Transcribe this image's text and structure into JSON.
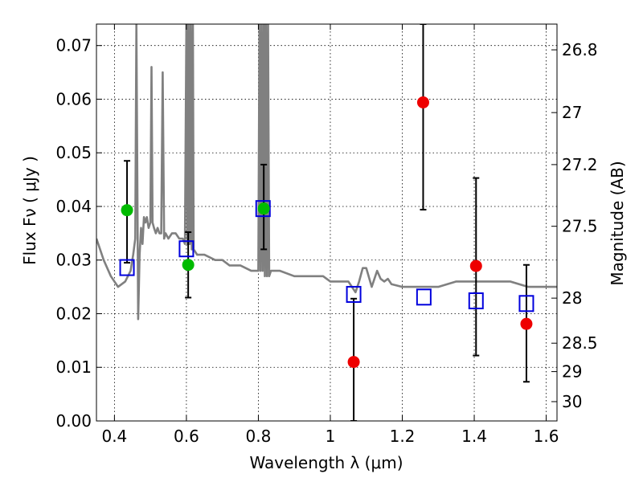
{
  "chart_data": {
    "type": "scatter",
    "title": "",
    "xlabel": "Wavelength  λ (μm)",
    "ylabel": "Flux  Fν  ( μJy )",
    "y2label": "Magnitude (AB)",
    "xlim": [
      0.35,
      1.63
    ],
    "ylim": [
      0.0,
      0.074
    ],
    "grid": true,
    "xticks": [
      0.4,
      0.6,
      0.8,
      1.0,
      1.2,
      1.4,
      1.6
    ],
    "xtick_labels": [
      "0.4",
      "0.6",
      "0.8",
      "1",
      "1.2",
      "1.4",
      "1.6"
    ],
    "yticks": [
      0.0,
      0.01,
      0.02,
      0.03,
      0.04,
      0.05,
      0.06,
      0.07
    ],
    "ytick_labels": [
      "0.00",
      "0.01",
      "0.02",
      "0.03",
      "0.04",
      "0.05",
      "0.06",
      "0.07"
    ],
    "y2ticks": [
      {
        "label": "26.8",
        "flux": 0.0692
      },
      {
        "label": "27",
        "flux": 0.0575
      },
      {
        "label": "27.2",
        "flux": 0.0478
      },
      {
        "label": "27.5",
        "flux": 0.0363
      },
      {
        "label": "28",
        "flux": 0.0229
      },
      {
        "label": "28.5",
        "flux": 0.0145
      },
      {
        "label": "29",
        "flux": 0.0092
      },
      {
        "label": "30",
        "flux": 0.0036
      }
    ],
    "colors": {
      "model": "#808080",
      "green": "#00bb00",
      "red": "#ee0000",
      "square": "#0000dd",
      "errorbar": "#000000"
    },
    "series": [
      {
        "name": "model spectrum",
        "kind": "line",
        "x": [
          0.35,
          0.37,
          0.39,
          0.41,
          0.43,
          0.445,
          0.452,
          0.458,
          0.461,
          0.466,
          0.47,
          0.474,
          0.478,
          0.482,
          0.486,
          0.49,
          0.495,
          0.5,
          0.503,
          0.506,
          0.51,
          0.515,
          0.52,
          0.525,
          0.53,
          0.534,
          0.538,
          0.542,
          0.55,
          0.56,
          0.57,
          0.58,
          0.59,
          0.596,
          0.6,
          0.603,
          0.606,
          0.609,
          0.612,
          0.615,
          0.618,
          0.62,
          0.63,
          0.65,
          0.68,
          0.7,
          0.72,
          0.75,
          0.78,
          0.8,
          0.803,
          0.806,
          0.809,
          0.812,
          0.815,
          0.818,
          0.821,
          0.824,
          0.827,
          0.83,
          0.835,
          0.86,
          0.9,
          0.95,
          0.98,
          1.0,
          1.02,
          1.05,
          1.07,
          1.08,
          1.09,
          1.1,
          1.115,
          1.13,
          1.14,
          1.15,
          1.16,
          1.17,
          1.2,
          1.25,
          1.3,
          1.35,
          1.4,
          1.45,
          1.5,
          1.55,
          1.6,
          1.63
        ],
        "y": [
          0.034,
          0.03,
          0.027,
          0.025,
          0.026,
          0.028,
          0.031,
          0.034,
          0.074,
          0.019,
          0.031,
          0.036,
          0.033,
          0.038,
          0.037,
          0.038,
          0.036,
          0.037,
          0.066,
          0.037,
          0.036,
          0.035,
          0.036,
          0.035,
          0.035,
          0.065,
          0.034,
          0.035,
          0.034,
          0.035,
          0.035,
          0.034,
          0.034,
          0.033,
          0.074,
          0.033,
          0.074,
          0.033,
          0.074,
          0.032,
          0.074,
          0.032,
          0.031,
          0.031,
          0.03,
          0.03,
          0.029,
          0.029,
          0.028,
          0.028,
          0.074,
          0.028,
          0.074,
          0.028,
          0.074,
          0.027,
          0.074,
          0.027,
          0.074,
          0.027,
          0.028,
          0.028,
          0.027,
          0.027,
          0.027,
          0.026,
          0.026,
          0.026,
          0.024,
          0.026,
          0.0285,
          0.0285,
          0.025,
          0.028,
          0.0265,
          0.026,
          0.0265,
          0.0255,
          0.025,
          0.025,
          0.025,
          0.026,
          0.026,
          0.026,
          0.026,
          0.025,
          0.025,
          0.025
        ]
      },
      {
        "name": "green points",
        "kind": "points",
        "x": [
          0.435,
          0.605,
          0.815
        ],
        "y": [
          0.0393,
          0.0291,
          0.0396
        ]
      },
      {
        "name": "red points",
        "kind": "points",
        "x": [
          1.065,
          1.258,
          1.405,
          1.545
        ],
        "y": [
          0.011,
          0.0594,
          0.0289,
          0.0181
        ]
      },
      {
        "name": "model photometry",
        "kind": "squares",
        "x": [
          0.435,
          0.6,
          0.813,
          1.065,
          1.26,
          1.405,
          1.545
        ],
        "y": [
          0.0286,
          0.0321,
          0.0396,
          0.0236,
          0.0231,
          0.0224,
          0.0219
        ]
      },
      {
        "name": "error bars",
        "kind": "errorbars",
        "x": [
          0.435,
          0.605,
          0.815,
          1.065,
          1.258,
          1.405,
          1.545
        ],
        "ylow": [
          0.0295,
          0.023,
          0.032,
          0.0,
          0.0394,
          0.0122,
          0.0073
        ],
        "yhigh": [
          0.0485,
          0.0352,
          0.0478,
          0.0228,
          0.074,
          0.0453,
          0.0291
        ]
      }
    ]
  }
}
